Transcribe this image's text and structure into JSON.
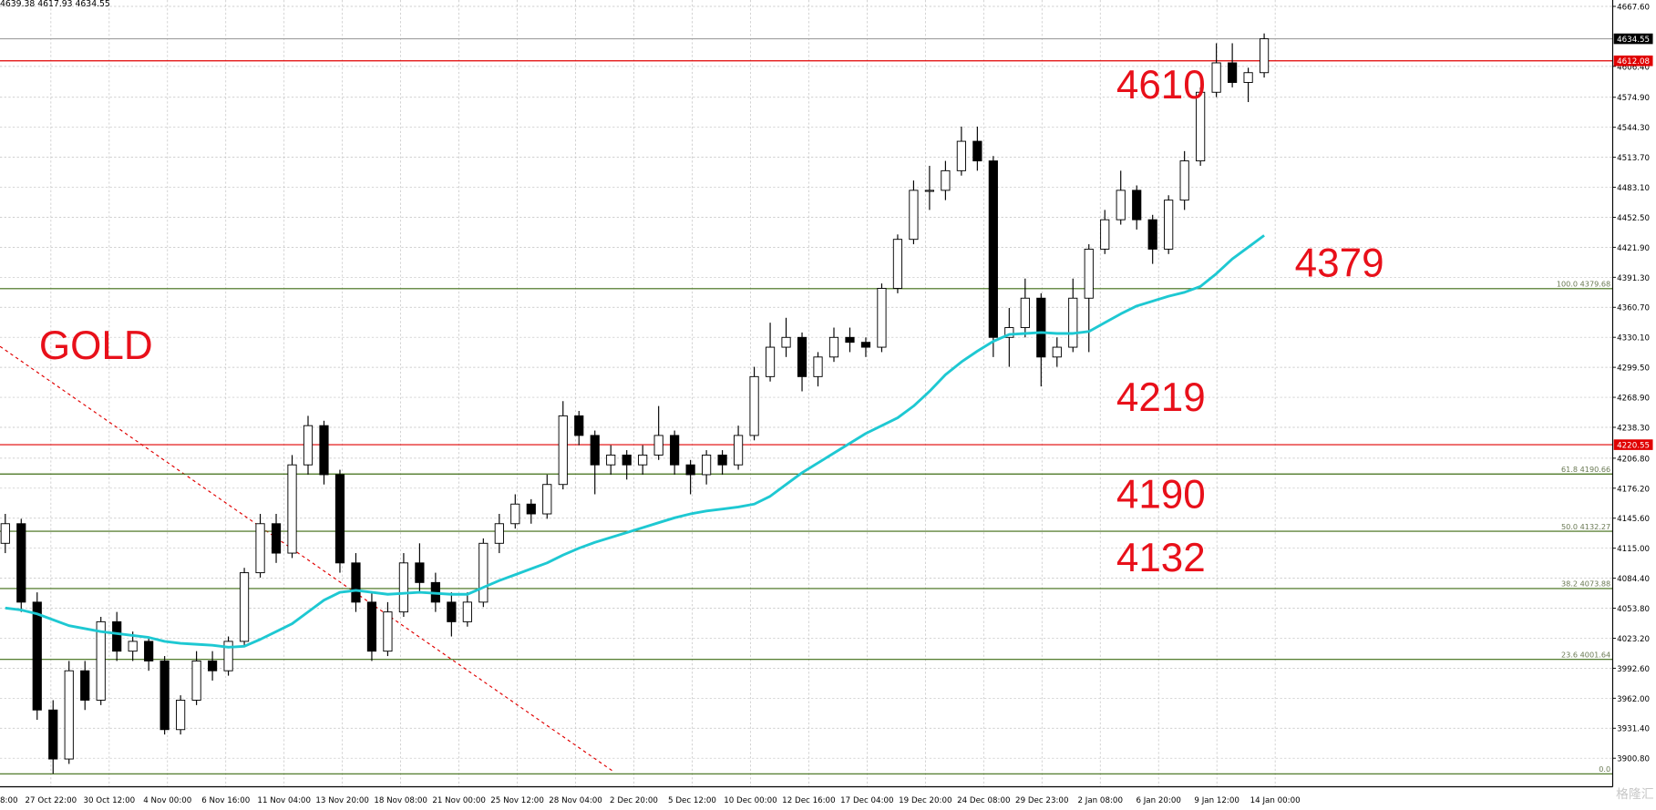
{
  "chart_data": {
    "type": "candlestick",
    "header": "4639.38 4617.93 4634.55",
    "title": "GOLD",
    "annotations": [
      "4610",
      "4379",
      "4219",
      "4190",
      "4132"
    ],
    "watermark": "格隆汇",
    "ylim": [
      3871.7,
      4674.1
    ],
    "yticks": [
      {
        "value": 4667.6,
        "label": "4667.60"
      },
      {
        "value": 4606.4,
        "label": "4606.40"
      },
      {
        "value": 4574.9,
        "label": "4574.90"
      },
      {
        "value": 4544.3,
        "label": "4544.30"
      },
      {
        "value": 4513.7,
        "label": "4513.70"
      },
      {
        "value": 4483.1,
        "label": "4483.10"
      },
      {
        "value": 4452.5,
        "label": "4452.50"
      },
      {
        "value": 4421.9,
        "label": "4421.90"
      },
      {
        "value": 4391.3,
        "label": "4391.30"
      },
      {
        "value": 4360.7,
        "label": "4360.70"
      },
      {
        "value": 4330.1,
        "label": "4330.10"
      },
      {
        "value": 4299.5,
        "label": "4299.50"
      },
      {
        "value": 4268.9,
        "label": "4268.90"
      },
      {
        "value": 4238.3,
        "label": "4238.30"
      },
      {
        "value": 4206.8,
        "label": "4206.80"
      },
      {
        "value": 4176.2,
        "label": "4176.20"
      },
      {
        "value": 4145.6,
        "label": "4145.60"
      },
      {
        "value": 4115,
        "label": "4115.00"
      },
      {
        "value": 4084.4,
        "label": "4084.40"
      },
      {
        "value": 4053.8,
        "label": "4053.80"
      },
      {
        "value": 4023.2,
        "label": "4023.20"
      },
      {
        "value": 3992.6,
        "label": "3992.60"
      },
      {
        "value": 3962,
        "label": "3962.00"
      },
      {
        "value": 3931.4,
        "label": "3931.40"
      },
      {
        "value": 3900.8,
        "label": "3900.80"
      }
    ],
    "x_labels": [
      "8:00",
      "27 Oct 22:00",
      "30 Oct 12:00",
      "4 Nov 00:00",
      "6 Nov 16:00",
      "11 Nov 04:00",
      "13 Nov 20:00",
      "18 Nov 08:00",
      "21 Nov 00:00",
      "25 Nov 12:00",
      "28 Nov 04:00",
      "2 Dec 20:00",
      "5 Dec 12:00",
      "10 Dec 00:00",
      "12 Dec 16:00",
      "17 Dec 04:00",
      "19 Dec 20:00",
      "24 Dec 08:00",
      "29 Dec 23:00",
      "2 Jan 08:00",
      "6 Jan 20:00",
      "9 Jan 12:00",
      "14 Jan 00:00"
    ],
    "grid": true,
    "bull_color": "#ffffff",
    "bear_color": "#000000",
    "candles": [
      [
        4120,
        4150,
        4110,
        4140
      ],
      [
        4140,
        4145,
        4050,
        4060
      ],
      [
        4060,
        4070,
        3940,
        3950
      ],
      [
        3950,
        3960,
        3885,
        3900
      ],
      [
        3900,
        4000,
        3895,
        3990
      ],
      [
        3990,
        4000,
        3950,
        3960
      ],
      [
        3960,
        4045,
        3955,
        4040
      ],
      [
        4040,
        4050,
        4000,
        4010
      ],
      [
        4010,
        4030,
        4000,
        4020
      ],
      [
        4020,
        4025,
        3990,
        4000
      ],
      [
        4000,
        4005,
        3925,
        3930
      ],
      [
        3930,
        3965,
        3925,
        3960
      ],
      [
        3960,
        4010,
        3955,
        4000
      ],
      [
        4000,
        4010,
        3980,
        3990
      ],
      [
        3990,
        4025,
        3985,
        4020
      ],
      [
        4020,
        4095,
        4015,
        4090
      ],
      [
        4090,
        4150,
        4085,
        4140
      ],
      [
        4140,
        4150,
        4100,
        4110
      ],
      [
        4110,
        4210,
        4105,
        4200
      ],
      [
        4200,
        4250,
        4190,
        4240
      ],
      [
        4240,
        4245,
        4180,
        4190
      ],
      [
        4190,
        4195,
        4090,
        4100
      ],
      [
        4100,
        4110,
        4050,
        4060
      ],
      [
        4060,
        4070,
        4000,
        4010
      ],
      [
        4010,
        4060,
        4005,
        4050
      ],
      [
        4050,
        4110,
        4045,
        4100
      ],
      [
        4100,
        4120,
        4070,
        4080
      ],
      [
        4080,
        4090,
        4050,
        4060
      ],
      [
        4060,
        4070,
        4025,
        4040
      ],
      [
        4040,
        4070,
        4035,
        4060
      ],
      [
        4060,
        4125,
        4055,
        4120
      ],
      [
        4120,
        4150,
        4110,
        4140
      ],
      [
        4140,
        4170,
        4135,
        4160
      ],
      [
        4160,
        4165,
        4140,
        4150
      ],
      [
        4150,
        4190,
        4145,
        4180
      ],
      [
        4180,
        4265,
        4175,
        4250
      ],
      [
        4250,
        4255,
        4220,
        4230
      ],
      [
        4230,
        4235,
        4170,
        4200
      ],
      [
        4200,
        4220,
        4190,
        4210
      ],
      [
        4210,
        4215,
        4185,
        4200
      ],
      [
        4200,
        4220,
        4190,
        4210
      ],
      [
        4210,
        4260,
        4205,
        4230
      ],
      [
        4230,
        4235,
        4190,
        4200
      ],
      [
        4200,
        4205,
        4170,
        4190
      ],
      [
        4190,
        4215,
        4180,
        4210
      ],
      [
        4210,
        4215,
        4190,
        4200
      ],
      [
        4200,
        4240,
        4195,
        4230
      ],
      [
        4230,
        4300,
        4225,
        4290
      ],
      [
        4290,
        4345,
        4285,
        4320
      ],
      [
        4320,
        4350,
        4310,
        4330
      ],
      [
        4330,
        4335,
        4275,
        4290
      ],
      [
        4290,
        4315,
        4280,
        4310
      ],
      [
        4310,
        4340,
        4305,
        4330
      ],
      [
        4330,
        4340,
        4315,
        4325
      ],
      [
        4325,
        4330,
        4310,
        4320
      ],
      [
        4320,
        4385,
        4315,
        4380
      ],
      [
        4380,
        4435,
        4375,
        4430
      ],
      [
        4430,
        4490,
        4425,
        4480
      ],
      [
        4480,
        4505,
        4460,
        4480
      ],
      [
        4480,
        4510,
        4470,
        4500
      ],
      [
        4500,
        4545,
        4495,
        4530
      ],
      [
        4530,
        4545,
        4500,
        4510
      ],
      [
        4510,
        4515,
        4310,
        4330
      ],
      [
        4330,
        4360,
        4300,
        4340
      ],
      [
        4340,
        4390,
        4330,
        4370
      ],
      [
        4370,
        4375,
        4280,
        4310
      ],
      [
        4310,
        4330,
        4300,
        4320
      ],
      [
        4320,
        4390,
        4315,
        4370
      ],
      [
        4370,
        4425,
        4315,
        4420
      ],
      [
        4420,
        4460,
        4415,
        4450
      ],
      [
        4450,
        4500,
        4445,
        4480
      ],
      [
        4480,
        4485,
        4440,
        4450
      ],
      [
        4450,
        4455,
        4405,
        4420
      ],
      [
        4420,
        4475,
        4415,
        4470
      ],
      [
        4470,
        4520,
        4460,
        4510
      ],
      [
        4510,
        4585,
        4505,
        4580
      ],
      [
        4580,
        4630,
        4575,
        4610
      ],
      [
        4610,
        4630,
        4585,
        4590
      ],
      [
        4590,
        4605,
        4570,
        4600
      ],
      [
        4600,
        4640,
        4595,
        4634.55
      ]
    ],
    "ma": {
      "color": "#1ec8d2",
      "values": [
        4054,
        4052,
        4048,
        4042,
        4036,
        4033,
        4030,
        4028,
        4026,
        4024,
        4020,
        4018,
        4017,
        4016,
        4014,
        4015,
        4022,
        4030,
        4038,
        4050,
        4062,
        4070,
        4072,
        4070,
        4068,
        4069,
        4070,
        4069,
        4068,
        4068,
        4075,
        4082,
        4088,
        4094,
        4100,
        4108,
        4115,
        4121,
        4126,
        4131,
        4136,
        4141,
        4146,
        4150,
        4153,
        4155,
        4157,
        4160,
        4168,
        4180,
        4192,
        4202,
        4212,
        4222,
        4232,
        4240,
        4248,
        4260,
        4275,
        4292,
        4305,
        4316,
        4326,
        4333,
        4334,
        4335,
        4334,
        4334,
        4336,
        4345,
        4354,
        4362,
        4367,
        4372,
        4376,
        4382,
        4395,
        4410,
        4422,
        4434
      ]
    },
    "price_lines": [
      {
        "value": 4634.55,
        "color": "#a0a0a0",
        "tag_color": "#000000"
      },
      {
        "value": 4612.08,
        "color": "#e00000",
        "tag_color": "#e00000"
      },
      {
        "value": 4220.55,
        "color": "#e00000",
        "tag_color": "#e00000"
      }
    ],
    "fib_color": "#3d6b12",
    "fib_levels": [
      {
        "value": 4379.68,
        "label": "100.0 4379.68"
      },
      {
        "value": 4190.66,
        "label": "61.8 4190.66"
      },
      {
        "value": 4132.27,
        "label": "50.0 4132.27"
      },
      {
        "value": 4073.88,
        "label": "38.2 4073.88"
      },
      {
        "value": 4001.64,
        "label": "23.6 4001.64"
      },
      {
        "value": 3884.88,
        "label": "0.0"
      }
    ]
  }
}
